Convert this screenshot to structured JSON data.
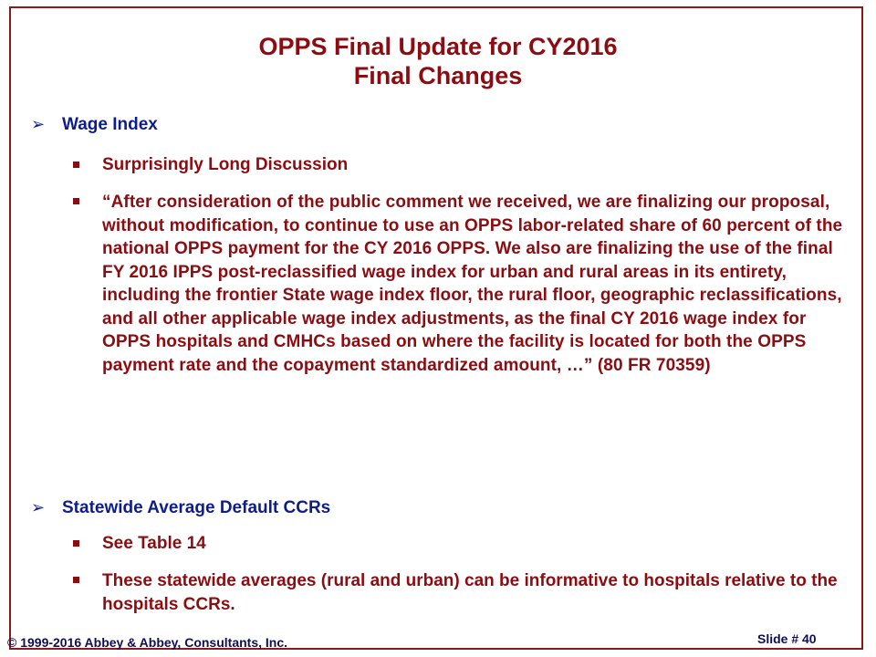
{
  "slide": {
    "title_line1": "OPPS Final Update for CY2016",
    "title_line2": "Final Changes",
    "bullets": [
      {
        "label": "Wage Index",
        "sub": [
          "Surprisingly Long Discussion",
          "“After consideration of the public comment we received, we are finalizing our proposal, without modification, to continue to use an OPPS labor-related share of 60 percent of the national OPPS payment for the CY 2016 OPPS. We also are finalizing the use of the final FY 2016 IPPS post-reclassified wage index for urban and rural areas in its entirety, including the frontier State wage index floor, the rural floor, geographic reclassifications, and all other applicable wage index adjustments, as the final CY 2016 wage index for OPPS hospitals and CMHCs based on where the facility is located for both the OPPS payment rate and the copayment standardized amount, …” (80 FR 70359)"
        ]
      },
      {
        "label": "Statewide Average Default CCRs",
        "sub": [
          "See Table 14",
          "These statewide averages (rural and urban) can be informative to hospitals relative to the hospitals CCRs."
        ]
      }
    ],
    "footer_copyright": "© 1999-2016 Abbey & Abbey, Consultants, Inc.",
    "footer_slide": "Slide # 40"
  },
  "colors": {
    "title": "#8b0d12",
    "level1": "#0f1d8a",
    "level2": "#8b0d12",
    "border": "#8b1a1a"
  }
}
